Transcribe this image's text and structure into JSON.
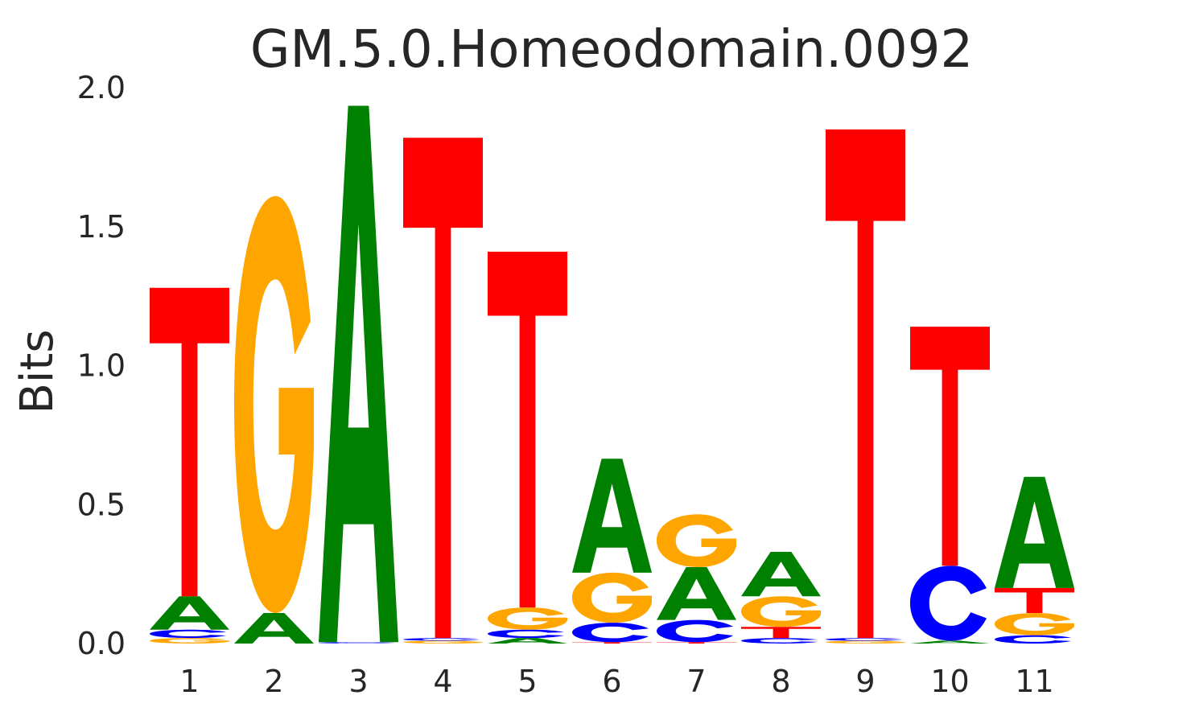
{
  "chart_data": {
    "type": "sequence-logo",
    "title": "GM.5.0.Homeodomain.0092",
    "xlabel": "",
    "ylabel": "Bits",
    "ylim": [
      0,
      2.0
    ],
    "yticks": [
      "0.0",
      "0.5",
      "1.0",
      "1.5",
      "2.0"
    ],
    "ytick_values": [
      0,
      0.5,
      1.0,
      1.5,
      2.0
    ],
    "categories": [
      "1",
      "2",
      "3",
      "4",
      "5",
      "6",
      "7",
      "8",
      "9",
      "10",
      "11"
    ],
    "colors": {
      "A": "#008000",
      "C": "#0000ff",
      "G": "#ffa500",
      "T": "#ff0000"
    },
    "grid": false,
    "positions": [
      [
        {
          "base": "G",
          "bits": 0.02
        },
        {
          "base": "C",
          "bits": 0.03
        },
        {
          "base": "A",
          "bits": 0.12
        },
        {
          "base": "T",
          "bits": 1.11
        }
      ],
      [
        {
          "base": "A",
          "bits": 0.11
        },
        {
          "base": "G",
          "bits": 1.5
        }
      ],
      [
        {
          "base": "C",
          "bits": 0.005
        },
        {
          "base": "A",
          "bits": 1.93
        }
      ],
      [
        {
          "base": "G",
          "bits": 0.01
        },
        {
          "base": "C",
          "bits": 0.01
        },
        {
          "base": "T",
          "bits": 1.8
        }
      ],
      [
        {
          "base": "A",
          "bits": 0.02
        },
        {
          "base": "C",
          "bits": 0.03
        },
        {
          "base": "G",
          "bits": 0.08
        },
        {
          "base": "T",
          "bits": 1.28
        }
      ],
      [
        {
          "base": "T",
          "bits": 0.005
        },
        {
          "base": "C",
          "bits": 0.07
        },
        {
          "base": "G",
          "bits": 0.18
        },
        {
          "base": "A",
          "bits": 0.41
        }
      ],
      [
        {
          "base": "T",
          "bits": 0.005
        },
        {
          "base": "C",
          "bits": 0.08
        },
        {
          "base": "A",
          "bits": 0.19
        },
        {
          "base": "G",
          "bits": 0.19
        }
      ],
      [
        {
          "base": "C",
          "bits": 0.02
        },
        {
          "base": "T",
          "bits": 0.04
        },
        {
          "base": "G",
          "bits": 0.11
        },
        {
          "base": "A",
          "bits": 0.16
        }
      ],
      [
        {
          "base": "G",
          "bits": 0.01
        },
        {
          "base": "C",
          "bits": 0.01
        },
        {
          "base": "T",
          "bits": 1.83
        }
      ],
      [
        {
          "base": "A",
          "bits": 0.01
        },
        {
          "base": "C",
          "bits": 0.27
        },
        {
          "base": "T",
          "bits": 0.86
        }
      ],
      [
        {
          "base": "C",
          "bits": 0.03
        },
        {
          "base": "G",
          "bits": 0.08
        },
        {
          "base": "T",
          "bits": 0.09
        },
        {
          "base": "A",
          "bits": 0.4
        }
      ]
    ]
  }
}
